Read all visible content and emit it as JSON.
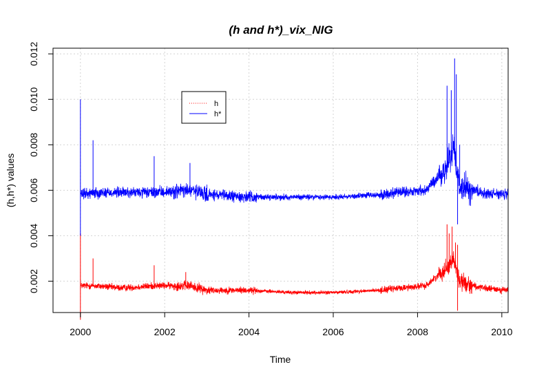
{
  "chart_data": {
    "type": "line",
    "title": "(h and h*)_vix_NIG",
    "xlabel": "Time",
    "ylabel": "(h,h*) values",
    "xlim": [
      1999.35,
      2010.15
    ],
    "ylim": [
      0.00062,
      0.01225
    ],
    "x_ticks": [
      2000,
      2002,
      2004,
      2006,
      2008,
      2010
    ],
    "x_tick_labels": [
      "2000",
      "2002",
      "2004",
      "2006",
      "2008",
      "2010"
    ],
    "y_ticks": [
      0.002,
      0.004,
      0.006,
      0.008,
      0.01,
      0.012
    ],
    "y_tick_labels": [
      "0.002",
      "0.004",
      "0.006",
      "0.008",
      "0.010",
      "0.012"
    ],
    "grid": true,
    "legend": {
      "position": "top-left",
      "entries": [
        {
          "label": "h",
          "color": "#ff0000",
          "style": "dotted"
        },
        {
          "label": "h*",
          "color": "#0000ff",
          "style": "solid"
        }
      ]
    },
    "series": [
      {
        "name": "h",
        "color": "#ff0000",
        "baseline": 0.00155,
        "noise": 0.00022,
        "x": [
          2000.0,
          2000.3,
          2001.0,
          2001.8,
          2002.6,
          2003.0,
          2004.0,
          2005.0,
          2006.0,
          2007.1,
          2007.6,
          2008.2,
          2008.7,
          2008.85,
          2009.0,
          2009.5,
          2010.15
        ],
        "y": [
          0.0018,
          0.0018,
          0.0017,
          0.0018,
          0.0018,
          0.0016,
          0.0016,
          0.0015,
          0.0015,
          0.0016,
          0.0017,
          0.0018,
          0.0026,
          0.003,
          0.002,
          0.0017,
          0.0016
        ],
        "spikes": [
          [
            2000.0,
            0.0041
          ],
          [
            2000.0,
            0.0003
          ],
          [
            2000.3,
            0.003
          ],
          [
            2001.75,
            0.0027
          ],
          [
            2002.5,
            0.0024
          ],
          [
            2008.7,
            0.0045
          ],
          [
            2008.75,
            0.0041
          ],
          [
            2008.82,
            0.0044
          ],
          [
            2008.9,
            0.0037
          ],
          [
            2008.95,
            0.0036
          ],
          [
            2008.95,
            0.0007
          ]
        ]
      },
      {
        "name": "h*",
        "color": "#0000ff",
        "baseline": 0.00575,
        "noise": 0.00035,
        "x": [
          2000.0,
          2000.3,
          2001.0,
          2001.8,
          2002.6,
          2003.0,
          2004.0,
          2005.0,
          2006.0,
          2007.1,
          2007.6,
          2008.2,
          2008.7,
          2008.85,
          2009.0,
          2009.5,
          2010.15
        ],
        "y": [
          0.0058,
          0.0059,
          0.0059,
          0.0059,
          0.006,
          0.0058,
          0.0057,
          0.0057,
          0.0057,
          0.0058,
          0.0059,
          0.006,
          0.007,
          0.008,
          0.0062,
          0.0059,
          0.0058
        ],
        "spikes": [
          [
            2000.0,
            0.01
          ],
          [
            2000.0,
            0.004
          ],
          [
            2000.3,
            0.0082
          ],
          [
            2001.75,
            0.0075
          ],
          [
            2002.6,
            0.0072
          ],
          [
            2008.7,
            0.0106
          ],
          [
            2008.8,
            0.0104
          ],
          [
            2008.88,
            0.0118
          ],
          [
            2008.92,
            0.0111
          ],
          [
            2009.0,
            0.008
          ],
          [
            2008.95,
            0.0045
          ]
        ]
      }
    ]
  }
}
